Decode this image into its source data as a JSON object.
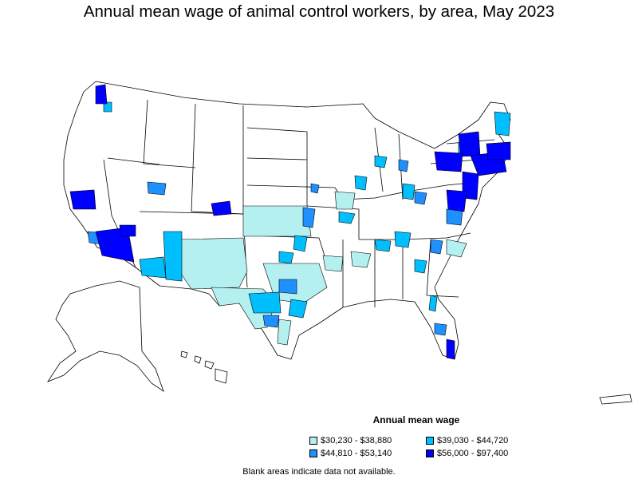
{
  "title": "Annual mean wage of animal control workers, by area, May 2023",
  "legend": {
    "title": "Annual mean wage",
    "items": [
      {
        "label": "$30,230 - $38,880",
        "color": "#b4f0f0"
      },
      {
        "label": "$39,030 - $44,720",
        "color": "#00bfff"
      },
      {
        "label": "$44,810 - $53,140",
        "color": "#1e90ff"
      },
      {
        "label": "$56,000 - $97,400",
        "color": "#0000ff"
      }
    ]
  },
  "note": "Blank areas indicate data not available.",
  "colors": {
    "outline": "#000000",
    "no_data": "#ffffff"
  }
}
